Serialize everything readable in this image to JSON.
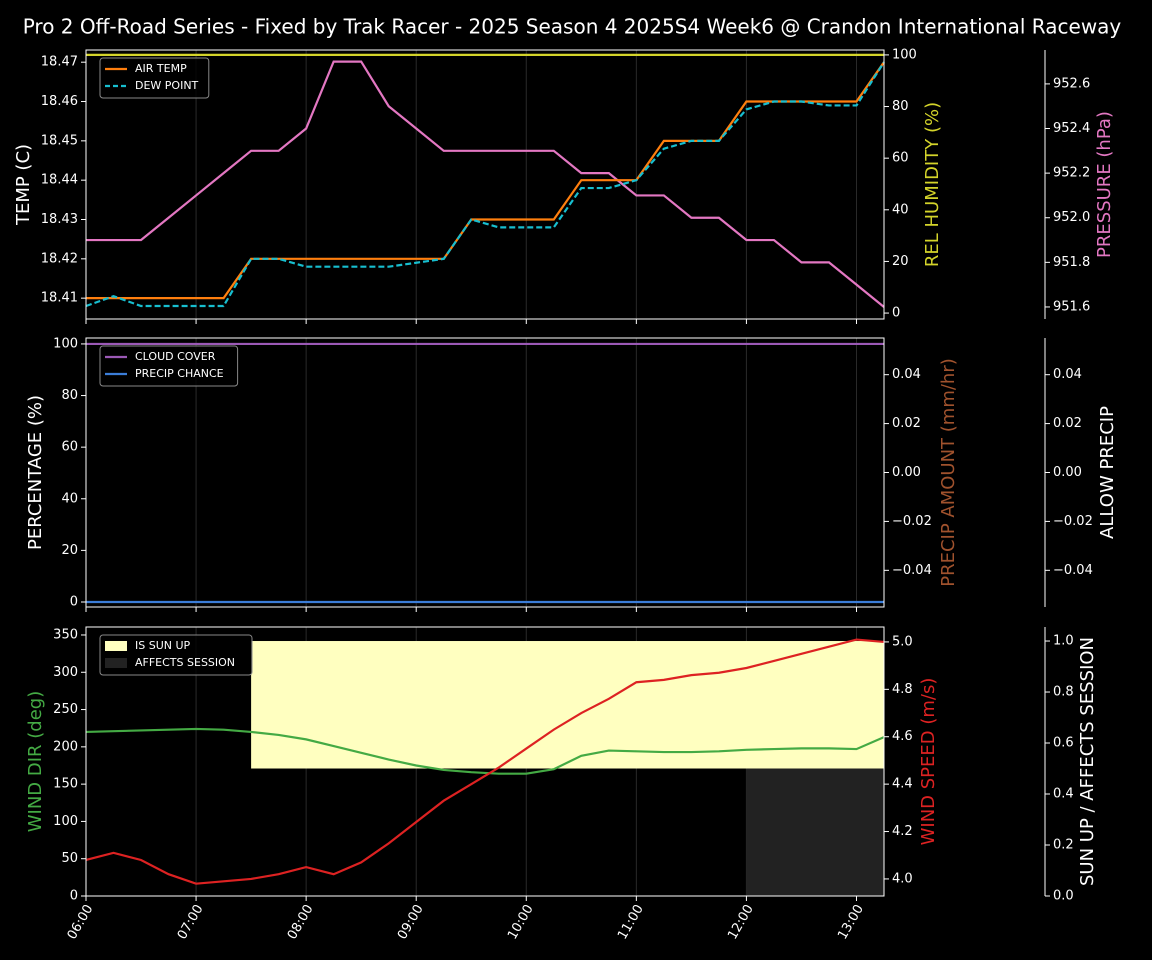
{
  "title": "Pro 2 Off-Road Series - Fixed by Trak Racer - 2025 Season 4 2025S4 Week6 @ Crandon International Raceway",
  "chart_data": [
    {
      "type": "line",
      "x": [
        6,
        6.25,
        6.5,
        6.75,
        7,
        7.25,
        7.5,
        7.75,
        8,
        8.25,
        8.5,
        8.75,
        9,
        9.25,
        9.5,
        9.75,
        10,
        10.25,
        10.5,
        10.75,
        11,
        11.25,
        11.5,
        11.75,
        12,
        12.25,
        12.5,
        12.75,
        13,
        13.25
      ],
      "xlim": [
        6,
        13.25
      ],
      "ylabel": "TEMP (C)",
      "ylabel_color": "#ffffff",
      "ylim": [
        18.4047,
        18.4731
      ],
      "yticks": [
        18.41,
        18.42,
        18.43,
        18.44,
        18.45,
        18.46,
        18.47
      ],
      "y2label": "REL HUMIDITY (%)",
      "y2label_color": "#d4d42a",
      "y2lim": [
        -2.3,
        101.9
      ],
      "y2ticks": [
        0,
        20,
        40,
        60,
        80,
        100
      ],
      "y3label": "PRESSURE (hPa)",
      "y3label_color": "#e377c2",
      "y3lim": [
        951.546,
        952.752
      ],
      "y3ticks": [
        {
          "value": 951.6,
          "label": "951.6"
        },
        {
          "value": 951.8,
          "label": "951.8"
        },
        {
          "value": 952.0,
          "label": "952.0"
        },
        {
          "value": 952.2,
          "label": "952.2"
        },
        {
          "value": 952.4,
          "label": "952.4"
        },
        {
          "value": 952.6,
          "label": "952.6"
        }
      ],
      "series": [
        {
          "axis": "y2",
          "color": "#d4d42a",
          "values": [
            100,
            100,
            100,
            100,
            100,
            100,
            100,
            100,
            100,
            100,
            100,
            100,
            100,
            100,
            100,
            100,
            100,
            100,
            100,
            100,
            100,
            100,
            100,
            100,
            100,
            100,
            100,
            100,
            100,
            100
          ]
        },
        {
          "axis": "y3",
          "color": "#e377c2",
          "values": [
            951.9,
            951.9,
            951.9,
            952.0,
            952.1,
            952.2,
            952.3,
            952.3,
            952.4,
            952.7,
            952.7,
            952.5,
            952.4,
            952.3,
            952.3,
            952.3,
            952.3,
            952.3,
            952.2,
            952.2,
            952.1,
            952.1,
            952.0,
            952.0,
            951.9,
            951.9,
            951.8,
            951.8,
            951.7,
            951.6
          ]
        },
        {
          "name": "AIR TEMP",
          "axis": "y",
          "color": "#ff7f0e",
          "values": [
            18.41,
            18.41,
            18.41,
            18.41,
            18.41,
            18.41,
            18.42,
            18.42,
            18.42,
            18.42,
            18.42,
            18.42,
            18.42,
            18.42,
            18.43,
            18.43,
            18.43,
            18.43,
            18.44,
            18.44,
            18.44,
            18.45,
            18.45,
            18.45,
            18.46,
            18.46,
            18.46,
            18.46,
            18.46,
            18.47
          ]
        },
        {
          "name": "DEW POINT",
          "axis": "y",
          "color": "#17becf",
          "dash": true,
          "values": [
            18.408,
            18.4105,
            18.408,
            18.408,
            18.408,
            18.408,
            18.42,
            18.42,
            18.418,
            18.418,
            18.418,
            18.418,
            18.419,
            18.42,
            18.43,
            18.428,
            18.428,
            18.428,
            18.438,
            18.438,
            18.44,
            18.448,
            18.45,
            18.45,
            18.458,
            18.46,
            18.46,
            18.459,
            18.459,
            18.47
          ]
        }
      ],
      "legend": "upper left"
    },
    {
      "type": "line",
      "x": [
        6,
        6.25,
        6.5,
        6.75,
        7,
        7.25,
        7.5,
        7.75,
        8,
        8.25,
        8.5,
        8.75,
        9,
        9.25,
        9.5,
        9.75,
        10,
        10.25,
        10.5,
        10.75,
        11,
        11.25,
        11.5,
        11.75,
        12,
        12.25,
        12.5,
        12.75,
        13,
        13.25
      ],
      "xlim": [
        6,
        13.25
      ],
      "ylabel": "PERCENTAGE (%)",
      "ylabel_color": "#ffffff",
      "ylim": [
        -1.94,
        102.3
      ],
      "yticks": [
        0,
        20,
        40,
        60,
        80,
        100
      ],
      "y2label": "PRECIP AMOUNT (mm/hr)",
      "y2label_color": "#a0522d",
      "y2lim": [
        -0.055,
        0.055
      ],
      "y2ticks": [
        {
          "value": -0.04,
          "label": "−0.04"
        },
        {
          "value": -0.02,
          "label": "−0.02"
        },
        {
          "value": 0,
          "label": "0.00"
        },
        {
          "value": 0.02,
          "label": "0.02"
        },
        {
          "value": 0.04,
          "label": "0.04"
        }
      ],
      "y3label": "ALLOW PRECIP",
      "y3label_color": "#ffffff",
      "y3lim": [
        -0.055,
        0.055
      ],
      "y3ticks": [
        {
          "value": -0.04,
          "label": "−0.04"
        },
        {
          "value": -0.02,
          "label": "−0.02"
        },
        {
          "value": 0,
          "label": "0.00"
        },
        {
          "value": 0.02,
          "label": "0.02"
        },
        {
          "value": 0.04,
          "label": "0.04"
        }
      ],
      "series": [
        {
          "name": "CLOUD COVER",
          "axis": "y",
          "color": "#9b59b6",
          "values": [
            100,
            100,
            100,
            100,
            100,
            100,
            100,
            100,
            100,
            100,
            100,
            100,
            100,
            100,
            100,
            100,
            100,
            100,
            100,
            100,
            100,
            100,
            100,
            100,
            100,
            100,
            100,
            100,
            100,
            100
          ]
        },
        {
          "name": "PRECIP CHANCE",
          "axis": "y",
          "color": "#3b7dd8",
          "values": [
            0,
            0,
            0,
            0,
            0,
            0,
            0,
            0,
            0,
            0,
            0,
            0,
            0,
            0,
            0,
            0,
            0,
            0,
            0,
            0,
            0,
            0,
            0,
            0,
            0,
            0,
            0,
            0,
            0,
            0
          ]
        }
      ],
      "legend": "upper left"
    },
    {
      "type": "line",
      "x": [
        6,
        6.25,
        6.5,
        6.75,
        7,
        7.25,
        7.5,
        7.75,
        8,
        8.25,
        8.5,
        8.75,
        9,
        9.25,
        9.5,
        9.75,
        10,
        10.25,
        10.5,
        10.75,
        11,
        11.25,
        11.5,
        11.75,
        12,
        12.25,
        12.5,
        12.75,
        13,
        13.25
      ],
      "xlim": [
        6,
        13.25
      ],
      "xticks": [
        {
          "value": 6,
          "label": "06:00"
        },
        {
          "value": 7,
          "label": "07:00"
        },
        {
          "value": 8,
          "label": "08:00"
        },
        {
          "value": 9,
          "label": "09:00"
        },
        {
          "value": 10,
          "label": "10:00"
        },
        {
          "value": 11,
          "label": "11:00"
        },
        {
          "value": 12,
          "label": "12:00"
        },
        {
          "value": 13,
          "label": "13:00"
        }
      ],
      "ylabel": "WIND DIR (deg)",
      "ylabel_color": "#44aa44",
      "ylim": [
        0,
        360.7
      ],
      "yticks": [
        0,
        50,
        100,
        150,
        200,
        250,
        300,
        350
      ],
      "y2label": "WIND SPEED (m/s)",
      "y2label_color": "#dd2222",
      "y2lim": [
        3.928,
        5.063
      ],
      "y2ticks": [
        {
          "value": 4.0,
          "label": "4.0"
        },
        {
          "value": 4.2,
          "label": "4.2"
        },
        {
          "value": 4.4,
          "label": "4.4"
        },
        {
          "value": 4.6,
          "label": "4.6"
        },
        {
          "value": 4.8,
          "label": "4.8"
        },
        {
          "value": 5.0,
          "label": "5.0"
        }
      ],
      "y3label": "SUN UP / AFFECTS SESSION",
      "y3label_color": "#ffffff",
      "y3lim": [
        0,
        1.055
      ],
      "y3ticks": [
        {
          "value": 0,
          "label": "0.0"
        },
        {
          "value": 0.2,
          "label": "0.2"
        },
        {
          "value": 0.4,
          "label": "0.4"
        },
        {
          "value": 0.6,
          "label": "0.6"
        },
        {
          "value": 0.8,
          "label": "0.8"
        },
        {
          "value": 1.0,
          "label": "1.0"
        }
      ],
      "spans": [
        {
          "name": "IS SUN UP",
          "axis": "y3",
          "color": "#ffffc0",
          "xrange": [
            7.5,
            13.25
          ],
          "yrange": [
            0.5,
            1.0
          ]
        },
        {
          "name": "AFFECTS SESSION",
          "axis": "y3",
          "color": "#222222",
          "xrange": [
            12,
            13.25
          ],
          "yrange": [
            0,
            0.5
          ]
        }
      ],
      "series": [
        {
          "axis": "y",
          "color": "#44aa44",
          "values": [
            220,
            221,
            222,
            223,
            224,
            223,
            220,
            216,
            210,
            201,
            192,
            183,
            175,
            169,
            166,
            164,
            164,
            170,
            188,
            195,
            194,
            193,
            193,
            194,
            196,
            197,
            198,
            198,
            197,
            213
          ]
        },
        {
          "axis": "y2",
          "color": "#dd2222",
          "values": [
            4.08,
            4.11,
            4.08,
            4.02,
            3.98,
            3.99,
            4.0,
            4.02,
            4.05,
            4.02,
            4.07,
            4.15,
            4.24,
            4.33,
            4.4,
            4.47,
            4.55,
            4.63,
            4.7,
            4.76,
            4.83,
            4.84,
            4.86,
            4.87,
            4.89,
            4.92,
            4.95,
            4.98,
            5.01,
            5.0
          ]
        }
      ],
      "legend": "upper left"
    }
  ]
}
